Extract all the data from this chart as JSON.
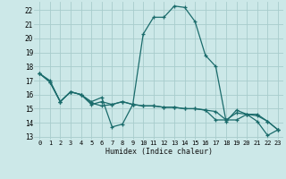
{
  "xlabel": "Humidex (Indice chaleur)",
  "bg_color": "#cce8e8",
  "grid_color": "#a8cccc",
  "line_color": "#1a6b6b",
  "x_ticks": [
    0,
    1,
    2,
    3,
    4,
    5,
    6,
    7,
    8,
    9,
    10,
    11,
    12,
    13,
    14,
    15,
    16,
    17,
    18,
    19,
    20,
    21,
    22,
    23
  ],
  "x_tick_labels": [
    "0",
    "1",
    "2",
    "3",
    "4",
    "5",
    "6",
    "7",
    "8",
    "9",
    "10",
    "11",
    "12",
    "13",
    "14",
    "15",
    "16",
    "17",
    "18",
    "19",
    "20",
    "21",
    "22",
    "23"
  ],
  "ylim": [
    12.8,
    22.6
  ],
  "xlim": [
    -0.5,
    23.5
  ],
  "y_ticks": [
    13,
    14,
    15,
    16,
    17,
    18,
    19,
    20,
    21,
    22
  ],
  "series1": [
    17.5,
    17.0,
    15.5,
    16.2,
    16.0,
    15.5,
    15.8,
    13.7,
    13.9,
    15.3,
    20.3,
    21.5,
    21.5,
    22.3,
    22.2,
    21.2,
    18.8,
    18.0,
    14.1,
    14.9,
    14.6,
    14.1,
    13.1,
    13.5
  ],
  "series2": [
    17.5,
    16.9,
    15.5,
    16.2,
    16.0,
    15.4,
    15.2,
    15.3,
    15.5,
    15.3,
    15.2,
    15.2,
    15.1,
    15.1,
    15.0,
    15.0,
    14.9,
    14.8,
    14.2,
    14.2,
    14.6,
    14.6,
    14.1,
    13.5
  ],
  "series3": [
    17.5,
    16.9,
    15.5,
    16.2,
    16.0,
    15.3,
    15.5,
    15.3,
    15.5,
    15.3,
    15.2,
    15.2,
    15.1,
    15.1,
    15.0,
    15.0,
    14.9,
    14.2,
    14.2,
    14.7,
    14.6,
    14.5,
    14.1,
    13.5
  ]
}
